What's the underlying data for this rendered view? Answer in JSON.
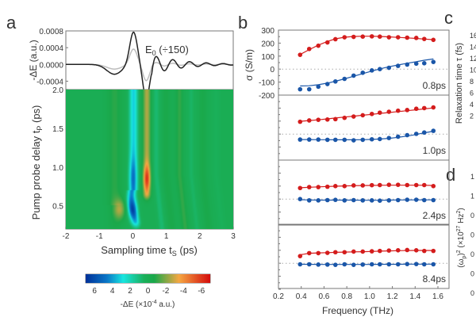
{
  "panel_labels": {
    "a": "a",
    "b": "b",
    "c": "c",
    "d": "d"
  },
  "chart_data": [
    {
      "id": "a-top",
      "type": "line",
      "ylabel": "-ΔE (a.u.)",
      "ylim": [
        -0.0006,
        0.0008
      ],
      "yticks": [
        "0.0008",
        "0.0004",
        "0.0000",
        "-0.0004"
      ],
      "ytick_values": [
        0.0008,
        0.0004,
        0.0,
        -0.0004
      ],
      "xlim": [
        -2,
        3
      ],
      "annotation": {
        "main": "E",
        "sub": "0",
        "rest": " (÷150)"
      },
      "series": [
        {
          "name": "-ΔE",
          "color": "#222222",
          "amplitude": 0.00078
        },
        {
          "name": "E0 (÷150)",
          "color": "#bdbdbd",
          "amplitude": 0.00037
        }
      ]
    },
    {
      "id": "a-heatmap",
      "type": "heatmap",
      "xlabel": {
        "main": "Sampling time t",
        "sub": "S",
        "rest": " (ps)"
      },
      "ylabel": {
        "main": "Pump probe delay t",
        "sub": "P",
        "rest": " (ps)"
      },
      "xlim": [
        -2,
        3
      ],
      "ylim": [
        0.2,
        2.0
      ],
      "xticks": [
        "-2",
        "-1",
        "0",
        "1",
        "2",
        "3"
      ],
      "xtick_values": [
        -2,
        -1,
        0,
        1,
        2,
        3
      ],
      "yticks": [
        "2.0",
        "1.5",
        "1.0",
        "0.5"
      ],
      "ytick_values": [
        2.0,
        1.5,
        1.0,
        0.5
      ],
      "dashed_line_tp": 1.45,
      "features": [
        {
          "desc": "blue lobe",
          "ts": 0.0,
          "tp": 0.45,
          "value": 6.5
        },
        {
          "desc": "cyan ridge",
          "ts": 0.0,
          "tp_range": [
            0.3,
            2.0
          ],
          "value": 3.5
        },
        {
          "desc": "red lobe",
          "ts": 0.42,
          "tp": 0.85,
          "value": -6
        },
        {
          "desc": "orange ridge",
          "ts": 0.42,
          "tp_range": [
            0.6,
            2.0
          ],
          "value": -2.5
        },
        {
          "desc": "orange spot",
          "ts": -0.4,
          "tp": 0.45,
          "value": -2.5
        }
      ],
      "colorbar": {
        "label": {
          "main": "-ΔE (×10",
          "sup": "-4",
          "rest": " a.u.)"
        },
        "range": [
          7,
          -7
        ],
        "ticks": [
          "6",
          "4",
          "2",
          "0",
          "-2",
          "-4",
          "-6"
        ],
        "tick_values": [
          6,
          4,
          2,
          0,
          -2,
          -4,
          -6
        ],
        "colormap": [
          "#00329a",
          "#0a78c8",
          "#19e6e0",
          "#1ab05a",
          "#1aa84a",
          "#f5a742",
          "#d50d0d"
        ]
      }
    },
    {
      "id": "b",
      "type": "scatter",
      "xlabel": "Frequency (THz)",
      "ylabel": "σ (S/m)",
      "xlim": [
        0.2,
        1.65
      ],
      "xticks": [
        "0.2",
        "0.4",
        "0.6",
        "0.8",
        "1.0",
        "1.2",
        "1.4",
        "1.6"
      ],
      "xtick_values": [
        0.2,
        0.4,
        0.6,
        0.8,
        1.0,
        1.2,
        1.4,
        1.6
      ],
      "ylim": [
        -200,
        300
      ],
      "yticks": [
        "300",
        "200",
        "100",
        "0",
        "-100",
        "-200"
      ],
      "ytick_values": [
        300,
        200,
        100,
        0,
        -100,
        -200
      ],
      "colors": {
        "real": "#d41c1c",
        "imag": "#1a56a8"
      },
      "x": [
        0.39,
        0.47,
        0.55,
        0.63,
        0.7,
        0.78,
        0.86,
        0.94,
        1.02,
        1.09,
        1.17,
        1.25,
        1.33,
        1.41,
        1.48,
        1.56
      ],
      "panels": [
        {
          "label": "0.8ps",
          "real": [
            110,
            155,
            180,
            205,
            230,
            245,
            248,
            250,
            252,
            250,
            245,
            245,
            242,
            240,
            232,
            225
          ],
          "real_fit": [
            112,
            150,
            185,
            213,
            233,
            245,
            251,
            253,
            253,
            251,
            248,
            244,
            240,
            236,
            231,
            227
          ],
          "imag": [
            -155,
            -155,
            -135,
            -115,
            -95,
            -75,
            -50,
            -28,
            -10,
            0,
            10,
            25,
            35,
            42,
            45,
            55
          ],
          "imag_fit": [
            -130,
            -128,
            -120,
            -108,
            -93,
            -75,
            -55,
            -35,
            -15,
            2,
            18,
            32,
            45,
            57,
            68,
            78
          ]
        },
        {
          "label": "1.0ps",
          "real": [
            95,
            105,
            110,
            112,
            115,
            125,
            135,
            145,
            155,
            165,
            172,
            180,
            185,
            195,
            200,
            205
          ],
          "real_fit": [
            98,
            104,
            110,
            117,
            124,
            131,
            138,
            145,
            152,
            159,
            166,
            173,
            180,
            187,
            194,
            201
          ],
          "imag": [
            -42,
            -42,
            -42,
            -44,
            -44,
            -44,
            -48,
            -44,
            -40,
            -38,
            -30,
            -20,
            -8,
            2,
            12,
            25
          ],
          "imag_fit": [
            -42,
            -42,
            -43,
            -43,
            -44,
            -44,
            -44,
            -43,
            -41,
            -38,
            -33,
            -25,
            -15,
            -3,
            10,
            22
          ]
        },
        {
          "label": "2.4ps",
          "real": [
            85,
            92,
            92,
            95,
            100,
            100,
            105,
            105,
            107,
            108,
            110,
            110,
            108,
            108,
            108,
            100
          ],
          "real_fit": [
            87,
            91,
            94,
            97,
            99,
            101,
            103,
            104,
            105,
            106,
            107,
            107,
            107,
            107,
            106,
            105
          ],
          "imag": [
            0,
            -10,
            -10,
            -8,
            -6,
            -10,
            -8,
            -10,
            -10,
            -12,
            -10,
            -8,
            -5,
            -5,
            -8,
            -8
          ],
          "imag_fit": [
            -5,
            -7,
            -8,
            -8,
            -8,
            -8,
            -8,
            -9,
            -9,
            -9,
            -8,
            -7,
            -7,
            -6,
            -6,
            -6
          ]
        },
        {
          "label": "8.4ps",
          "real": [
            55,
            78,
            78,
            80,
            85,
            85,
            90,
            90,
            92,
            95,
            98,
            100,
            102,
            100,
            95,
            95
          ],
          "real_fit": [
            65,
            77,
            80,
            82,
            84,
            86,
            88,
            89,
            91,
            93,
            95,
            97,
            98,
            99,
            99,
            98
          ],
          "imag": [
            -8,
            -8,
            -10,
            -10,
            -12,
            -8,
            -12,
            -10,
            -8,
            -8,
            -8,
            -8,
            -6,
            -6,
            -8,
            -8
          ],
          "imag_fit": [
            -8,
            -8,
            -9,
            -9,
            -9,
            -9,
            -9,
            -9,
            -9,
            -8,
            -8,
            -8,
            -7,
            -7,
            -7,
            -7
          ]
        }
      ]
    },
    {
      "id": "c",
      "type": "scatter",
      "ylabel": {
        "main": "Relaxation time τ (fs)"
      },
      "yticks": [
        "16",
        "14",
        "12",
        "10",
        "8",
        "6",
        "4",
        "2"
      ],
      "ytick_values": [
        16,
        14,
        12,
        10,
        8,
        6,
        4,
        2
      ],
      "note": "panel cropped at right edge"
    },
    {
      "id": "d",
      "type": "scatter",
      "ylabel": {
        "main": "(ω",
        "sub": "p",
        "rest": ")",
        "sup": "2",
        "rest2": " (×10",
        "sup2": "27",
        "rest3": " Hz",
        "sup3": "2",
        "rest4": ")"
      },
      "yticks": [
        "1",
        "1",
        "0",
        "0",
        "0",
        "0",
        "0"
      ],
      "note": "panel cropped at right edge"
    }
  ]
}
